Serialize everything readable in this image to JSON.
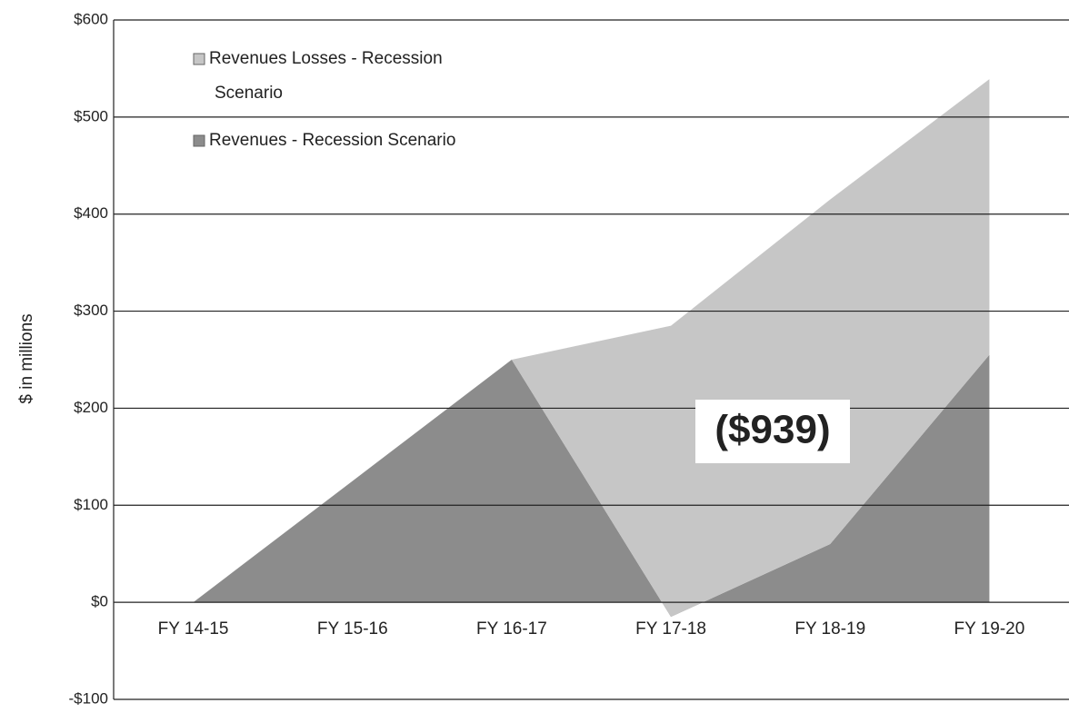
{
  "chart_data": {
    "type": "stacked-area",
    "y_axis_label": "$ in millions",
    "annotation": "($939)",
    "categories": [
      "FY 14-15",
      "FY 15-16",
      "FY 16-17",
      "FY 17-18",
      "FY 18-19",
      "FY 19-20"
    ],
    "series": [
      {
        "name": "Revenues - Recession Scenario",
        "color": "#8c8c8c",
        "values": [
          0,
          125,
          250,
          -15,
          60,
          255
        ]
      },
      {
        "name": "Revenues Losses - Recession Scenario",
        "color": "#c6c6c6",
        "values": [
          0,
          0,
          0,
          300,
          355,
          284
        ]
      }
    ],
    "legend_order": [
      1,
      0
    ],
    "ylim": [
      -100,
      600
    ],
    "yticks": [
      {
        "value": -100,
        "label": "-$100"
      },
      {
        "value": 0,
        "label": "$0"
      },
      {
        "value": 100,
        "label": "$100"
      },
      {
        "value": 200,
        "label": "$200"
      },
      {
        "value": 300,
        "label": "$300"
      },
      {
        "value": 400,
        "label": "$400"
      },
      {
        "value": 500,
        "label": "$500"
      },
      {
        "value": 600,
        "label": "$600"
      }
    ],
    "grid": true
  }
}
